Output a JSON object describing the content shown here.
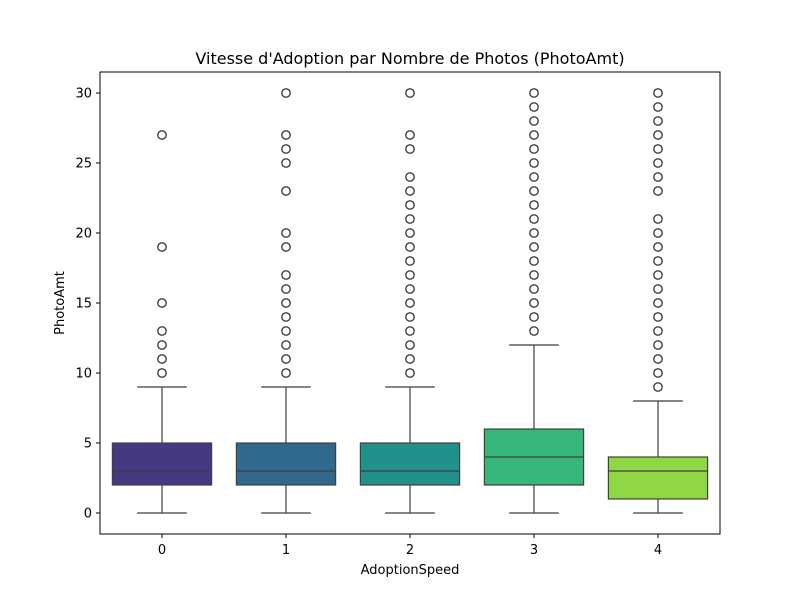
{
  "chart_data": {
    "type": "box",
    "title": "Vitesse d'Adoption par Nombre de Photos (PhotoAmt)",
    "xlabel": "AdoptionSpeed",
    "ylabel": "PhotoAmt",
    "categories": [
      "0",
      "1",
      "2",
      "3",
      "4"
    ],
    "ylim": [
      -1.5,
      31.5
    ],
    "yticks": [
      "0",
      "5",
      "10",
      "15",
      "20",
      "25",
      "30"
    ],
    "grid": false,
    "colors": [
      "#443a83",
      "#31688e",
      "#21918c",
      "#35b779",
      "#8fd744"
    ],
    "boxes": [
      {
        "category": "0",
        "whisker_low": 0,
        "q1": 2,
        "median": 3,
        "q3": 5,
        "whisker_high": 9,
        "outliers": [
          10,
          11,
          12,
          13,
          15,
          19,
          27
        ]
      },
      {
        "category": "1",
        "whisker_low": 0,
        "q1": 2,
        "median": 3,
        "q3": 5,
        "whisker_high": 9,
        "outliers": [
          10,
          11,
          12,
          13,
          14,
          15,
          16,
          17,
          19,
          20,
          23,
          25,
          26,
          27,
          30
        ]
      },
      {
        "category": "2",
        "whisker_low": 0,
        "q1": 2,
        "median": 3,
        "q3": 5,
        "whisker_high": 9,
        "outliers": [
          10,
          11,
          12,
          13,
          14,
          15,
          16,
          17,
          18,
          19,
          20,
          21,
          22,
          23,
          24,
          26,
          27,
          30
        ]
      },
      {
        "category": "3",
        "whisker_low": 0,
        "q1": 2,
        "median": 4,
        "q3": 6,
        "whisker_high": 12,
        "outliers": [
          13,
          14,
          15,
          16,
          17,
          18,
          19,
          20,
          21,
          22,
          23,
          24,
          25,
          26,
          27,
          28,
          29,
          30
        ]
      },
      {
        "category": "4",
        "whisker_low": 0,
        "q1": 1,
        "median": 3,
        "q3": 4,
        "whisker_high": 8,
        "outliers": [
          9,
          10,
          11,
          12,
          13,
          14,
          15,
          16,
          17,
          18,
          19,
          20,
          21,
          23,
          24,
          25,
          26,
          27,
          28,
          29,
          30
        ]
      }
    ]
  }
}
